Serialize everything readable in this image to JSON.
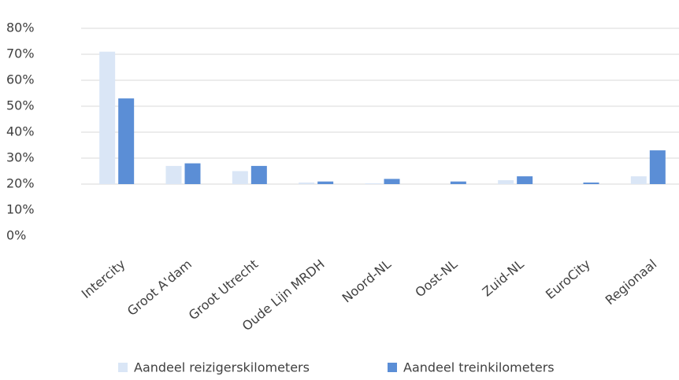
{
  "chart_data": {
    "type": "bar",
    "categories": [
      "Intercity",
      "Groot A'dam",
      "Groot Utrecht",
      "Oude Lijn MRDH",
      "Noord-NL",
      "Oost-NL",
      "Zuid-NL",
      "EuroCity",
      "Regionaal"
    ],
    "series": [
      {
        "name": "Aandeel reizigerskilometers",
        "color": "#dae6f6",
        "values": [
          71,
          27,
          25,
          20.6,
          20.3,
          20,
          21.5,
          20,
          23
        ]
      },
      {
        "name": "Aandeel treinkilometers",
        "color": "#5b8ed6",
        "values": [
          53,
          28,
          27,
          21,
          22,
          21,
          23,
          20.6,
          33
        ]
      }
    ],
    "ylim": [
      0,
      80
    ],
    "yticks": [
      {
        "value": 0,
        "label": "0%"
      },
      {
        "value": 10,
        "label": "10%"
      },
      {
        "value": 20,
        "label": "20%"
      },
      {
        "value": 30,
        "label": "30%"
      },
      {
        "value": 40,
        "label": "40%"
      },
      {
        "value": 50,
        "label": "50%"
      },
      {
        "value": 60,
        "label": "60%"
      },
      {
        "value": 70,
        "label": "70%"
      },
      {
        "value": 80,
        "label": "80%"
      }
    ],
    "x_axis_at": 20,
    "grid": true,
    "legend": "bottom"
  }
}
